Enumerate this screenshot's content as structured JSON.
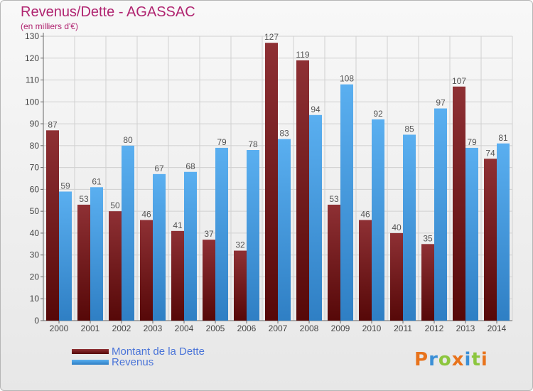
{
  "chart_data": {
    "type": "bar",
    "title": "Revenus/Dette - AGASSAC",
    "subtitle": "(en milliers d'€)",
    "xlabel": "",
    "ylabel": "",
    "categories": [
      "2000",
      "2001",
      "2002",
      "2003",
      "2004",
      "2005",
      "2006",
      "2007",
      "2008",
      "2009",
      "2010",
      "2011",
      "2012",
      "2013",
      "2014"
    ],
    "ylim": [
      0,
      130
    ],
    "yticks": [
      0,
      10,
      20,
      30,
      40,
      50,
      60,
      70,
      80,
      90,
      100,
      110,
      120,
      130
    ],
    "grid": true,
    "legend_placement": "bottom-left",
    "series": [
      {
        "name": "Montant de la Dette",
        "color": "#8b1a1a",
        "values": [
          87,
          53,
          50,
          46,
          41,
          37,
          32,
          127,
          119,
          53,
          46,
          40,
          35,
          107,
          74
        ]
      },
      {
        "name": "Revenus",
        "color": "#4aa3e6",
        "values": [
          59,
          61,
          80,
          67,
          68,
          79,
          78,
          83,
          94,
          108,
          92,
          85,
          97,
          79,
          81
        ]
      }
    ]
  },
  "logo": {
    "text": "Proxiti",
    "letters": [
      {
        "char": "P",
        "color": "#e8731c"
      },
      {
        "char": "r",
        "color": "#3a8fd6"
      },
      {
        "char": "o",
        "color": "#8cc63e"
      },
      {
        "char": "x",
        "color": "#e8731c"
      },
      {
        "char": "i",
        "color": "#3a8fd6"
      },
      {
        "char": "t",
        "color": "#8cc63e"
      },
      {
        "char": "i",
        "color": "#e8731c"
      }
    ]
  }
}
